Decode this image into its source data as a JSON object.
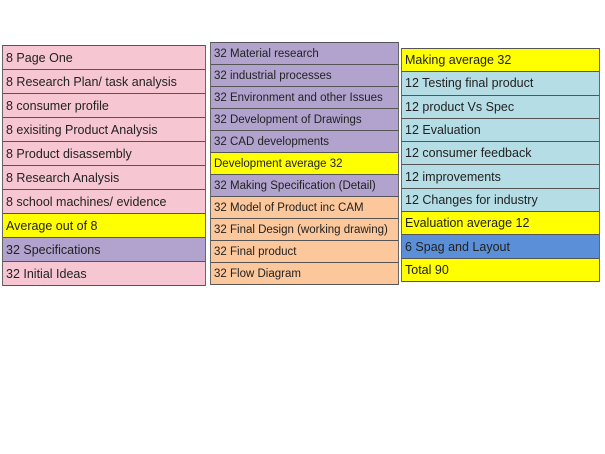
{
  "colors": {
    "pink": "#f6c6d3",
    "purple": "#b1a3cd",
    "yellow": "#ffff00",
    "orange": "#fcc79a",
    "lightblue": "#b4dde6",
    "blue": "#5b8fd8"
  },
  "columns": [
    {
      "rows": [
        {
          "text": "8 Page One",
          "color": "pink"
        },
        {
          "text": "8 Research Plan/ task analysis",
          "color": "pink"
        },
        {
          "text": "8 consumer profile",
          "color": "pink"
        },
        {
          "text": "8 exisiting Product Analysis",
          "color": "pink"
        },
        {
          "text": "8 Product disassembly",
          "color": "pink"
        },
        {
          "text": "8 Research Analysis",
          "color": "pink"
        },
        {
          "text": "8 school machines/ evidence",
          "color": "pink"
        },
        {
          "text": "Average out of 8",
          "color": "yellow"
        },
        {
          "text": "32 Specifications",
          "color": "purple"
        },
        {
          "text": "32 Initial Ideas",
          "color": "pink"
        }
      ]
    },
    {
      "rows": [
        {
          "text": "32 Material research",
          "color": "purple"
        },
        {
          "text": "32 industrial processes",
          "color": "purple"
        },
        {
          "text": "32 Environment and other Issues",
          "color": "purple"
        },
        {
          "text": "32 Development of Drawings",
          "color": "purple"
        },
        {
          "text": "32 CAD developments",
          "color": "purple"
        },
        {
          "text": "Development average 32",
          "color": "yellow"
        },
        {
          "text": "32 Making Specification (Detail)",
          "color": "purple"
        },
        {
          "text": "32 Model of Product inc CAM",
          "color": "orange"
        },
        {
          "text": "32 Final Design (working drawing)",
          "color": "orange"
        },
        {
          "text": "32 Final product",
          "color": "orange"
        },
        {
          "text": "32 Flow Diagram",
          "color": "orange"
        }
      ]
    },
    {
      "rows": [
        {
          "text": "Making average 32",
          "color": "yellow"
        },
        {
          "text": "12 Testing final product",
          "color": "lightblue"
        },
        {
          "text": "12 product Vs Spec",
          "color": "lightblue"
        },
        {
          "text": "12 Evaluation",
          "color": "lightblue"
        },
        {
          "text": "12 consumer feedback",
          "color": "lightblue"
        },
        {
          "text": "12 improvements",
          "color": "lightblue"
        },
        {
          "text": "12 Changes for industry",
          "color": "lightblue"
        },
        {
          "text": "Evaluation average 12",
          "color": "yellow"
        },
        {
          "text": "6 Spag and Layout",
          "color": "blue"
        },
        {
          "text": "Total  90",
          "color": "yellow"
        }
      ]
    }
  ]
}
